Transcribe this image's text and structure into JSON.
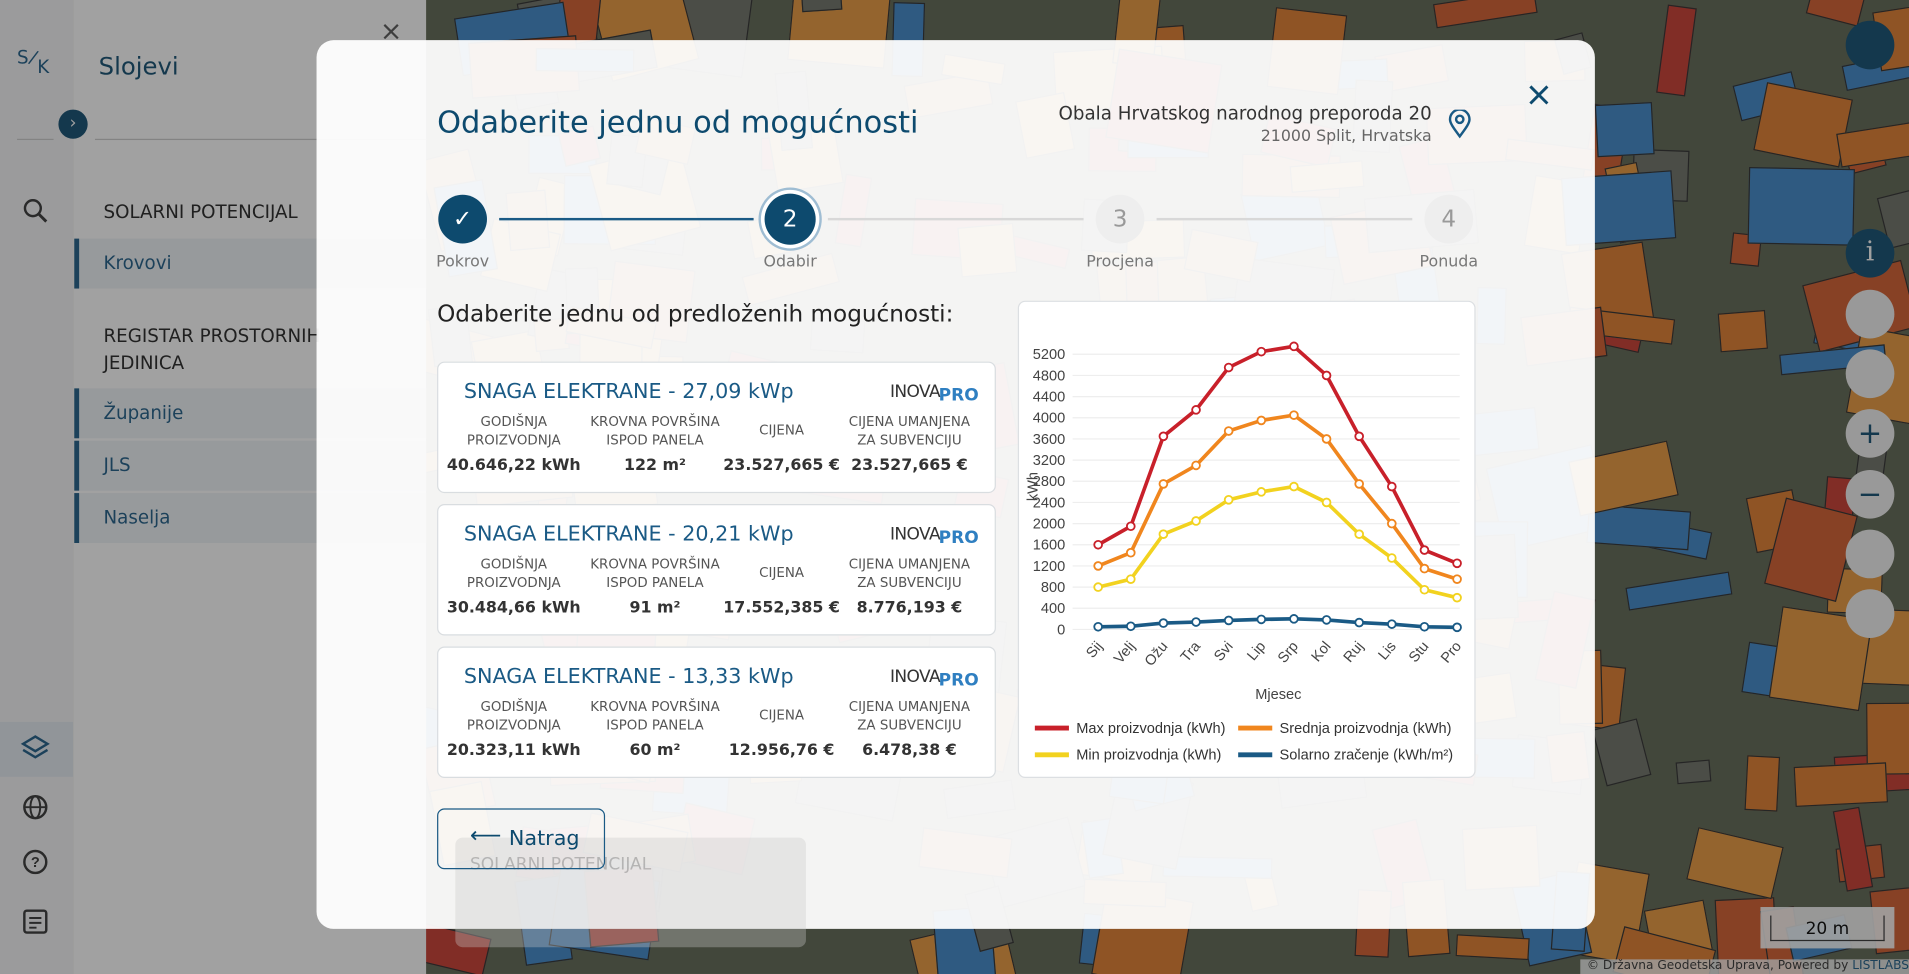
{
  "sidebar": {
    "logo_top": "S",
    "logo_bottom": "K",
    "title": "Slojevi",
    "sections": [
      {
        "heading": "SOLARNI POTENCIJAL",
        "items": [
          "Krovovi"
        ]
      },
      {
        "heading": "REGISTAR PROSTORNIH JEDINICA",
        "items": [
          "Županije",
          "JLS",
          "Naselja"
        ]
      }
    ]
  },
  "modal": {
    "title": "Odaberite jednu od mogućnosti",
    "address_line1": "Obala Hrvatskog narodnog preporoda 20",
    "address_line2": "21000 Split, Hrvatska",
    "steps": [
      {
        "label": "Pokrov"
      },
      {
        "number": 2,
        "label": "Odabir"
      },
      {
        "number": 3,
        "label": "Procjena"
      },
      {
        "number": 4,
        "label": "Ponuda"
      }
    ],
    "prompt": "Odaberite jednu od predloženih mogućnosti:",
    "options": [
      {
        "title": "SNAGA ELEKTRANE - 27,09 kWp",
        "logo": [
          "INOVA",
          "PRO"
        ],
        "stats": [
          {
            "label": "GODIŠNJA PROIZVODNJA",
            "value": "40.646,22 kWh"
          },
          {
            "label": "KROVNA POVRŠINA ISPOD PANELA",
            "value": "122 m²"
          },
          {
            "label": "CIJENA",
            "value": "23.527,665 €"
          },
          {
            "label": "CIJENA UMANJENA ZA SUBVENCIJU",
            "value": "23.527,665 €"
          }
        ]
      },
      {
        "title": "SNAGA ELEKTRANE - 20,21 kWp",
        "logo": [
          "INOVA",
          "PRO"
        ],
        "stats": [
          {
            "label": "GODIŠNJA PROIZVODNJA",
            "value": "30.484,66 kWh"
          },
          {
            "label": "KROVNA POVRŠINA ISPOD PANELA",
            "value": "91 m²"
          },
          {
            "label": "CIJENA",
            "value": "17.552,385 €"
          },
          {
            "label": "CIJENA UMANJENA ZA SUBVENCIJU",
            "value": "8.776,193 €"
          }
        ]
      },
      {
        "title": "SNAGA ELEKTRANE - 13,33 kWp",
        "logo": [
          "INOVA",
          "PRO"
        ],
        "stats": [
          {
            "label": "GODIŠNJA PROIZVODNJA",
            "value": "20.323,11 kWh"
          },
          {
            "label": "KROVNA POVRŠINA ISPOD PANELA",
            "value": "60 m²"
          },
          {
            "label": "CIJENA",
            "value": "12.956,76 €"
          },
          {
            "label": "CIJENA UMANJENA ZA SUBVENCIJU",
            "value": "6.478,38 €"
          }
        ]
      }
    ],
    "back_button": "Natrag"
  },
  "chart_data": {
    "type": "line",
    "x_label": "Mjesec",
    "y_label": "kWh",
    "categories": [
      "Sij",
      "Velj",
      "Ožu",
      "Tra",
      "Svi",
      "Lip",
      "Srp",
      "Kol",
      "Ruj",
      "Lis",
      "Stu",
      "Pro"
    ],
    "series": [
      {
        "name": "Max proizvodnja (kWh)",
        "color": "#c8202a",
        "values": [
          1600,
          1950,
          3650,
          4150,
          4950,
          5250,
          5350,
          4800,
          3650,
          2700,
          1500,
          1250
        ]
      },
      {
        "name": "Srednja proizvodnja (kWh)",
        "color": "#f0861e",
        "values": [
          1200,
          1450,
          2750,
          3100,
          3750,
          3950,
          4050,
          3600,
          2750,
          2000,
          1150,
          950
        ]
      },
      {
        "name": "Min proizvodnja (kWh)",
        "color": "#f2d21f",
        "values": [
          800,
          950,
          1800,
          2050,
          2450,
          2600,
          2700,
          2400,
          1800,
          1350,
          750,
          600
        ]
      },
      {
        "name": "Solarno zračenje (kWh/m²)",
        "color": "#1a5a85",
        "values": [
          50,
          60,
          120,
          140,
          170,
          190,
          200,
          180,
          130,
          100,
          50,
          40
        ]
      }
    ],
    "ylim": [
      0,
      5400
    ],
    "yticks": [
      0,
      400,
      800,
      1200,
      1600,
      2000,
      2400,
      2800,
      3200,
      3600,
      4000,
      4400,
      4800,
      5200
    ],
    "grid": true,
    "legend": "bottom"
  },
  "map": {
    "legend_title": "SOLARNI POTENCIJAL",
    "scale": "20 m",
    "attribution": "© Državna Geodetska Uprava, Powered by",
    "attribution_link": "LISTLABS"
  }
}
